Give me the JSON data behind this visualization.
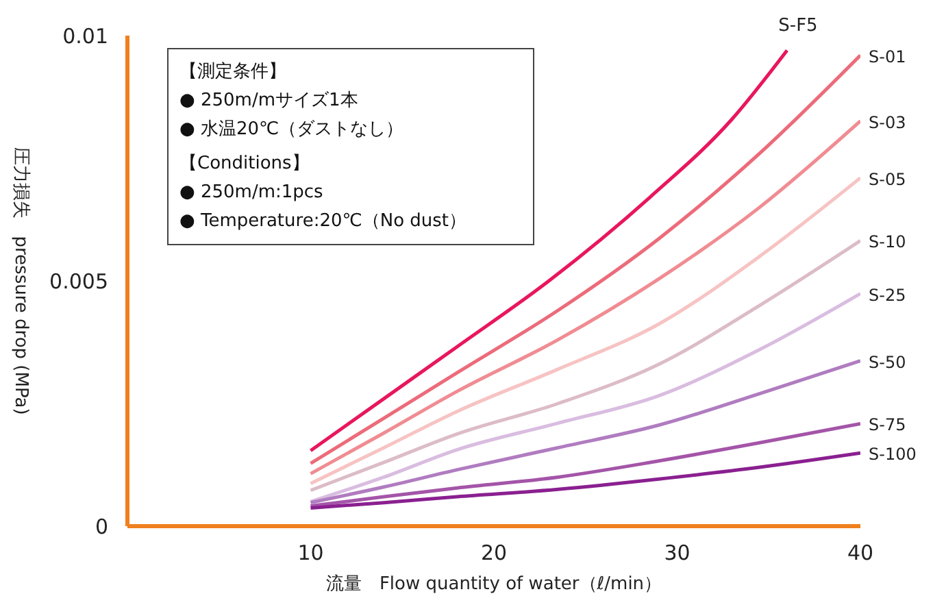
{
  "chart_data": {
    "type": "line",
    "xlabel": "流量　Flow quantity of water（ℓ/min）",
    "ylabel": "圧力損失　pressure drop (MPa)",
    "annotations": [
      "【測定条件】",
      "● 250m/mサイズ1本",
      "● 水温20℃（ダストなし）",
      "【Conditions】",
      "● 250m/m:1pcs",
      "● Temperature:20℃（No dust）"
    ],
    "xlim": [
      0,
      40
    ],
    "xticks": [
      10,
      20,
      30,
      40
    ],
    "ylim": [
      0,
      0.01
    ],
    "yticks": [
      0,
      0.005,
      0.01
    ],
    "grid": false,
    "legend": false,
    "marker": "none",
    "line_style": "solid",
    "series": [
      {
        "name": "S-F5",
        "color": "#e8175d",
        "x": [
          10,
          14,
          18,
          23,
          28.5,
          33,
          36
        ],
        "values": [
          0.00154,
          0.0026,
          0.00366,
          0.005,
          0.0067,
          0.0083,
          0.0097
        ]
      },
      {
        "name": "S-01",
        "color": "#ec6b7a",
        "x": [
          10,
          14,
          18,
          23.5,
          29,
          34.5,
          40
        ],
        "values": [
          0.00128,
          0.0022,
          0.00313,
          0.0044,
          0.00586,
          0.0076,
          0.0096
        ]
      },
      {
        "name": "S-03",
        "color": "#f08c92",
        "x": [
          10,
          14,
          18,
          23.5,
          29,
          34.5,
          40
        ],
        "values": [
          0.00107,
          0.0019,
          0.00275,
          0.0038,
          0.00504,
          0.0065,
          0.00826
        ]
      },
      {
        "name": "S-05",
        "color": "#f7c3c3",
        "x": [
          10,
          14,
          18,
          23.5,
          29,
          34.5,
          40
        ],
        "values": [
          0.00087,
          0.0016,
          0.00234,
          0.0032,
          0.00412,
          0.0055,
          0.0071
        ]
      },
      {
        "name": "S-10",
        "color": "#dcbcc8",
        "x": [
          10,
          14,
          18,
          23.5,
          29,
          34.5,
          40
        ],
        "values": [
          0.00073,
          0.0013,
          0.00188,
          0.0025,
          0.0033,
          0.0045,
          0.00582
        ]
      },
      {
        "name": "S-25",
        "color": "#d9bde0",
        "x": [
          10,
          14,
          18,
          23.5,
          29,
          34.5,
          40
        ],
        "values": [
          0.0005,
          0.001,
          0.00156,
          0.0021,
          0.00266,
          0.0036,
          0.00474
        ]
      },
      {
        "name": "S-50",
        "color": "#b07cc0",
        "x": [
          10,
          14,
          18,
          23.5,
          29,
          34.5,
          40
        ],
        "values": [
          0.00048,
          0.0008,
          0.00115,
          0.0016,
          0.00206,
          0.0027,
          0.00337
        ]
      },
      {
        "name": "S-75",
        "color": "#a455a8",
        "x": [
          10,
          14,
          18,
          23.5,
          29,
          34.5,
          40
        ],
        "values": [
          0.00041,
          0.0006,
          0.00078,
          0.001,
          0.00133,
          0.0017,
          0.00209
        ]
      },
      {
        "name": "S-100",
        "color": "#8a2090",
        "x": [
          10,
          14,
          18,
          23.5,
          29,
          34.5,
          40
        ],
        "values": [
          0.00037,
          0.00048,
          0.0006,
          0.00075,
          0.00096,
          0.0012,
          0.00149
        ]
      }
    ]
  }
}
